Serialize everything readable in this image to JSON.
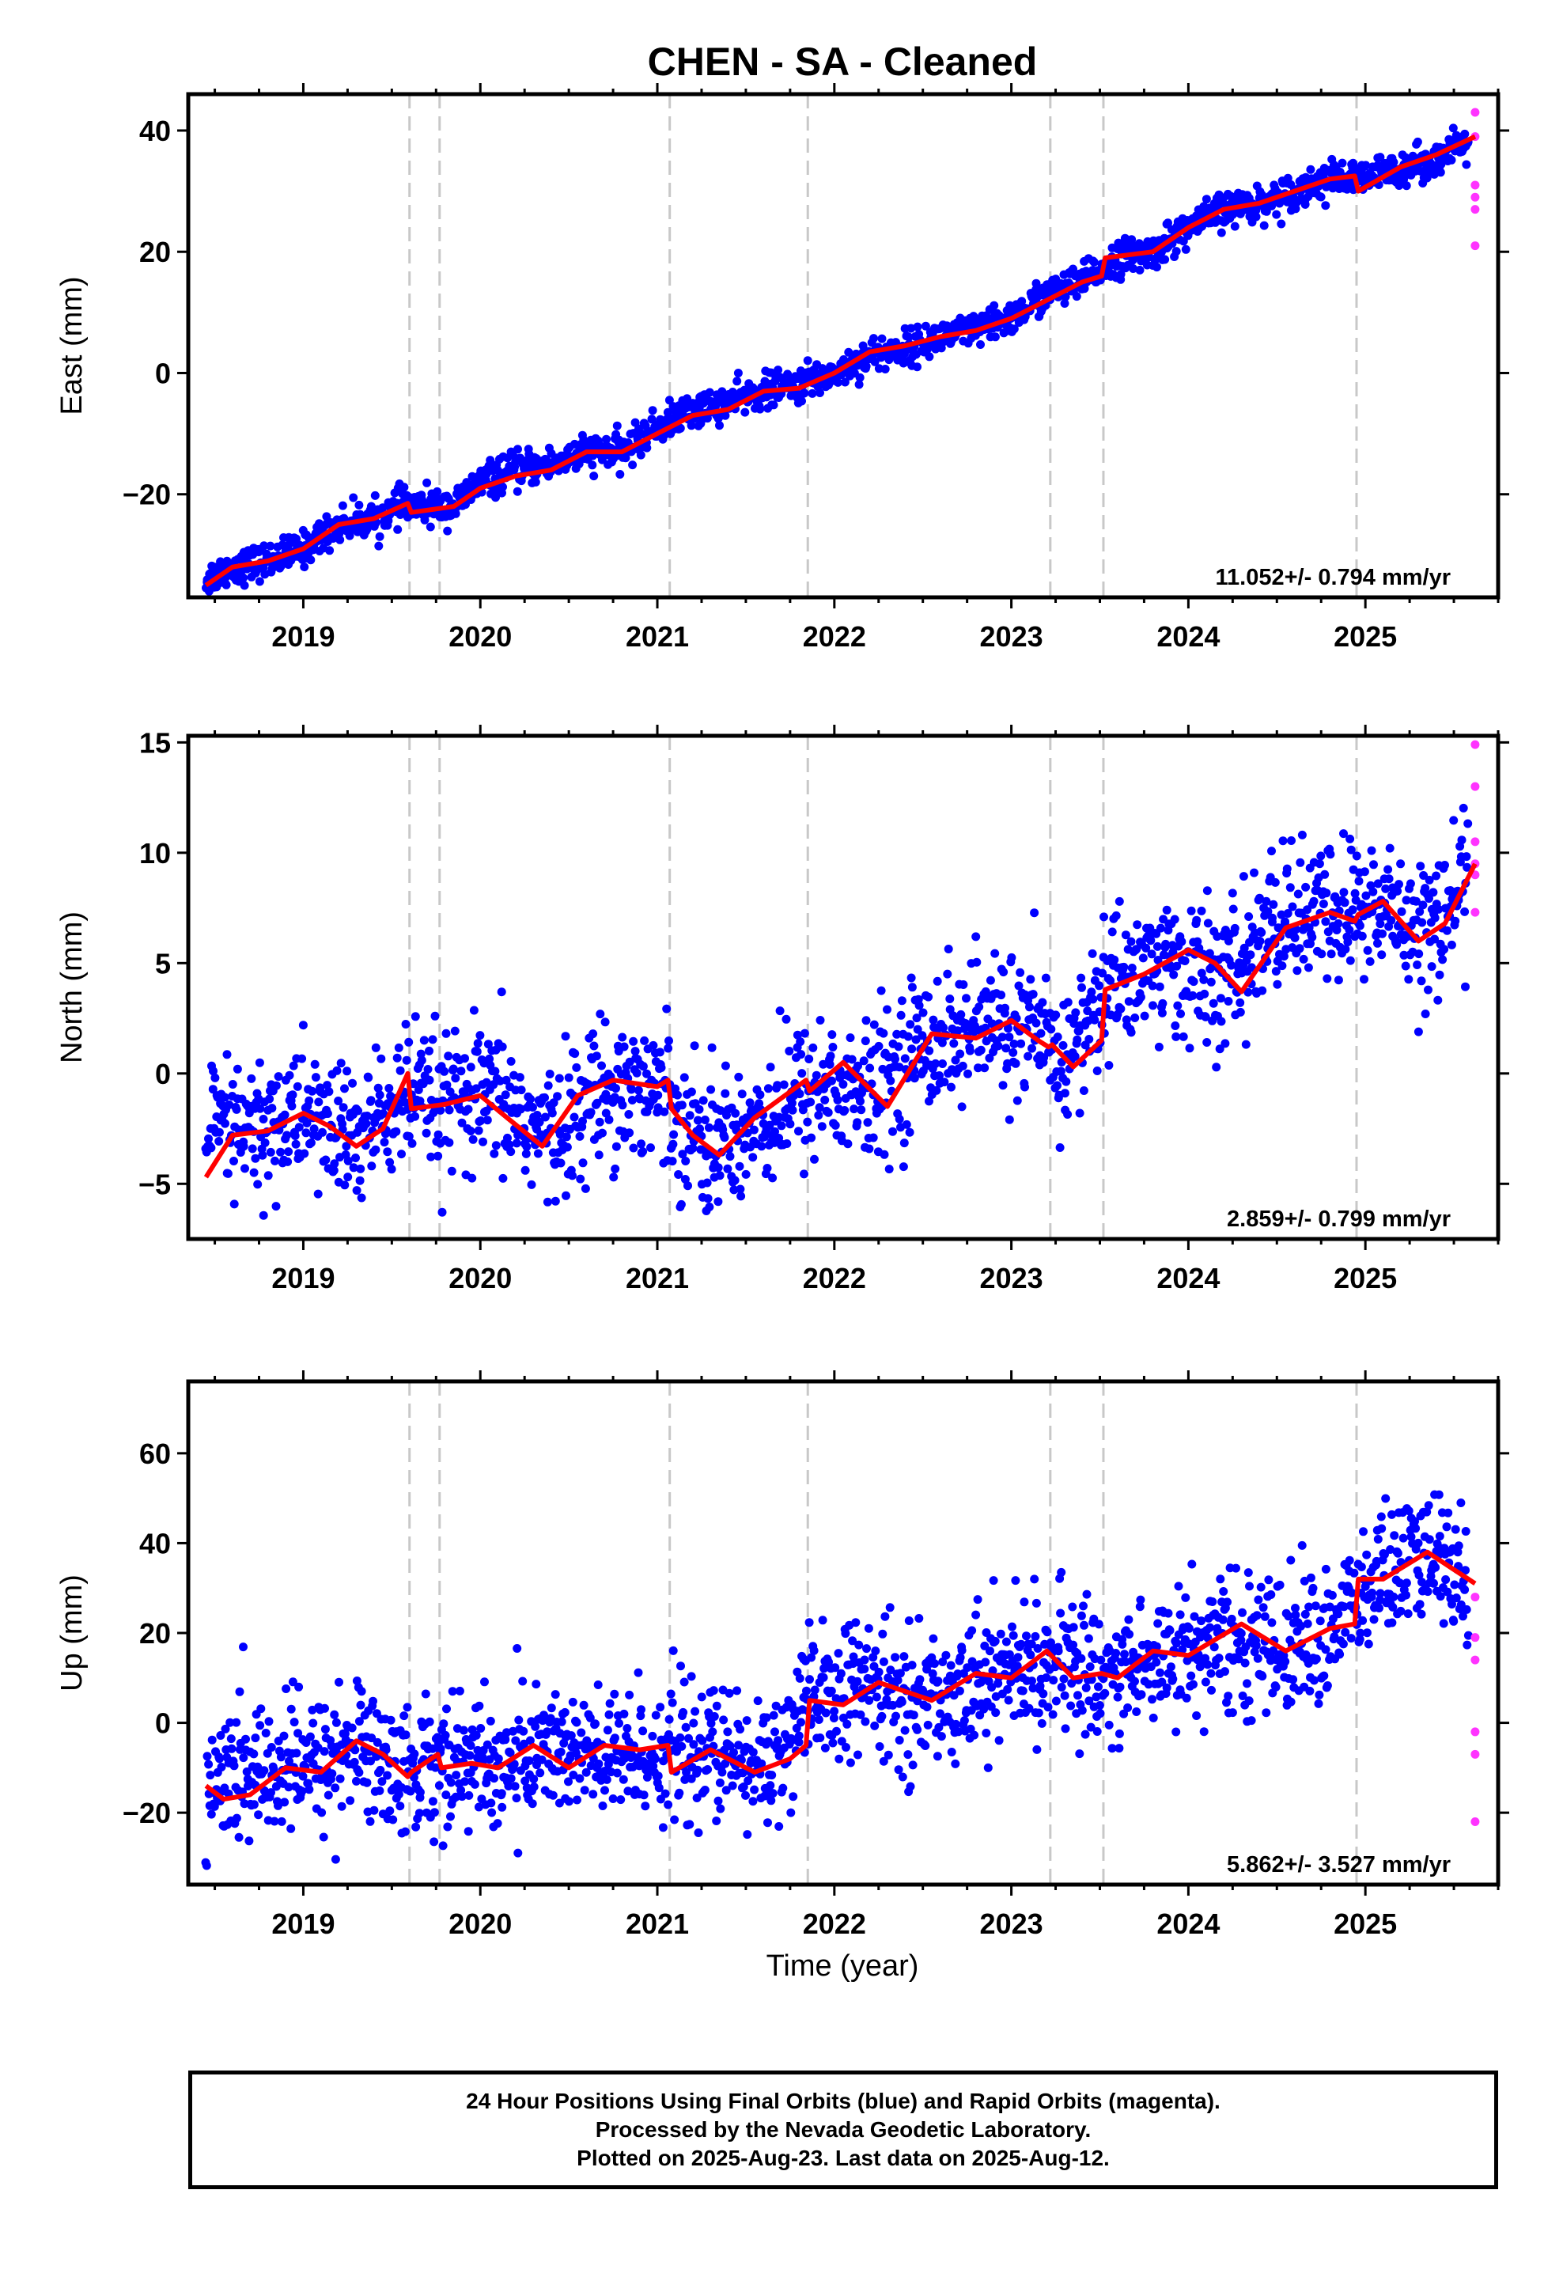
{
  "title": "CHEN  - SA - Cleaned",
  "xlabel": "Time (year)",
  "footer": [
    "24 Hour Positions Using Final Orbits (blue) and Rapid Orbits (magenta).",
    "Processed by the Nevada Geodetic Laboratory.",
    "Plotted on 2025-Aug-23. Last data on 2025-Aug-12."
  ],
  "colors": {
    "final_orbits": "#0000ff",
    "rapid_orbits": "#ff33ff",
    "model_fit": "#ff0000",
    "event_lines": "#c8c8c8"
  },
  "chart_data": [
    {
      "type": "scatter",
      "ylabel": "East (mm)",
      "rate_text": "11.052+/- 0.794 mm/yr",
      "xlim": [
        2018.35,
        2025.75
      ],
      "ylim": [
        -37,
        46
      ],
      "xticks": [
        2019,
        2020,
        2021,
        2022,
        2023,
        2024,
        2025
      ],
      "yticks": [
        -20,
        0,
        20,
        40
      ],
      "event_lines": [
        2019.6,
        2019.77,
        2021.07,
        2021.85,
        2023.22,
        2023.52,
        2024.95
      ],
      "series": [
        {
          "name": "Final Orbits (blue)",
          "x": [
            2018.45,
            2018.6,
            2018.8,
            2019.0,
            2019.2,
            2019.4,
            2019.55,
            2019.7,
            2019.85,
            2020.0,
            2020.2,
            2020.4,
            2020.6,
            2020.8,
            2021.0,
            2021.2,
            2021.4,
            2021.6,
            2021.8,
            2022.0,
            2022.2,
            2022.4,
            2022.6,
            2022.8,
            2023.0,
            2023.2,
            2023.4,
            2023.6,
            2023.8,
            2024.0,
            2024.2,
            2024.4,
            2024.6,
            2024.8,
            2025.0,
            2025.2,
            2025.4,
            2025.58
          ],
          "y": [
            -34,
            -32,
            -31,
            -29,
            -25,
            -24,
            -22,
            -22,
            -22,
            -18,
            -16,
            -15,
            -13,
            -13,
            -9,
            -6,
            -5,
            -3,
            -2,
            0,
            3,
            4,
            6,
            7,
            9,
            13,
            15,
            19,
            20,
            24,
            27,
            28,
            30,
            32,
            32,
            34,
            35,
            38
          ]
        },
        {
          "name": "Rapid Orbits (magenta)",
          "x": [
            2025.62,
            2025.62,
            2025.62,
            2025.62,
            2025.62,
            2025.62
          ],
          "y": [
            43,
            39,
            31,
            29,
            27,
            21
          ]
        },
        {
          "name": "Model fit",
          "x": [
            2018.45,
            2018.6,
            2018.8,
            2019.0,
            2019.2,
            2019.4,
            2019.59,
            2019.61,
            2019.85,
            2020.0,
            2020.2,
            2020.4,
            2020.6,
            2020.8,
            2021.0,
            2021.2,
            2021.4,
            2021.6,
            2021.8,
            2022.0,
            2022.2,
            2022.4,
            2022.6,
            2022.8,
            2023.0,
            2023.2,
            2023.4,
            2023.51,
            2023.53,
            2023.8,
            2024.0,
            2024.2,
            2024.4,
            2024.6,
            2024.8,
            2024.94,
            2024.96,
            2025.2,
            2025.4,
            2025.62
          ],
          "y": [
            -35,
            -32,
            -31,
            -29,
            -25,
            -24,
            -21.5,
            -23,
            -22,
            -19,
            -17,
            -16,
            -13,
            -13,
            -10,
            -7,
            -6,
            -3,
            -2.5,
            0,
            3.5,
            4.5,
            6,
            7,
            9,
            12,
            15,
            16,
            19,
            20,
            24,
            27,
            28,
            30,
            32,
            32.5,
            30,
            34,
            36,
            39
          ]
        }
      ]
    },
    {
      "type": "scatter",
      "ylabel": "North (mm)",
      "rate_text": "2.859+/- 0.799 mm/yr",
      "xlim": [
        2018.35,
        2025.75
      ],
      "ylim": [
        -7.5,
        15.3
      ],
      "xticks": [
        2019,
        2020,
        2021,
        2022,
        2023,
        2024,
        2025
      ],
      "yticks": [
        -5,
        0,
        5,
        10,
        15
      ],
      "event_lines": [
        2019.6,
        2019.77,
        2021.07,
        2021.85,
        2023.22,
        2023.52,
        2024.95
      ],
      "series": [
        {
          "name": "Final Orbits (blue)",
          "x": [
            2018.45,
            2018.7,
            2019.0,
            2019.3,
            2019.55,
            2019.8,
            2020.1,
            2020.4,
            2020.7,
            2021.0,
            2021.3,
            2021.6,
            2021.9,
            2022.2,
            2022.5,
            2022.8,
            2023.0,
            2023.3,
            2023.6,
            2023.9,
            2024.2,
            2024.5,
            2024.8,
            2025.1,
            2025.4,
            2025.58
          ],
          "y": [
            -2.5,
            -2.8,
            -1.8,
            -3.0,
            -1.2,
            -1.5,
            -1.2,
            -3.0,
            -0.5,
            -0.6,
            -3.4,
            -2.0,
            -0.5,
            -1.0,
            1.5,
            2.0,
            2.4,
            0.5,
            4.5,
            5.0,
            4.0,
            7.0,
            7.2,
            7.5,
            6.5,
            9.0
          ]
        },
        {
          "name": "Rapid Orbits (magenta)",
          "x": [
            2025.62,
            2025.62,
            2025.62,
            2025.62,
            2025.62,
            2025.62
          ],
          "y": [
            14.9,
            13.0,
            10.5,
            9.5,
            9.0,
            7.3
          ]
        },
        {
          "name": "Model fit",
          "x": [
            2018.45,
            2018.6,
            2018.8,
            2019.0,
            2019.15,
            2019.3,
            2019.45,
            2019.59,
            2019.61,
            2019.8,
            2020.0,
            2020.15,
            2020.35,
            2020.55,
            2020.75,
            2021.0,
            2021.06,
            2021.08,
            2021.2,
            2021.35,
            2021.55,
            2021.84,
            2021.86,
            2022.05,
            2022.3,
            2022.55,
            2022.8,
            2023.0,
            2023.15,
            2023.21,
            2023.23,
            2023.35,
            2023.51,
            2023.53,
            2023.75,
            2024.0,
            2024.15,
            2024.3,
            2024.55,
            2024.8,
            2024.94,
            2024.96,
            2025.1,
            2025.3,
            2025.45,
            2025.62
          ],
          "y": [
            -4.7,
            -2.8,
            -2.6,
            -1.8,
            -2.4,
            -3.3,
            -2.5,
            0.0,
            -1.6,
            -1.4,
            -1.0,
            -2.0,
            -3.3,
            -1.0,
            -0.3,
            -0.6,
            -0.3,
            -1.6,
            -2.8,
            -3.7,
            -2.0,
            -0.3,
            -0.8,
            0.5,
            -1.5,
            1.8,
            1.6,
            2.4,
            1.5,
            1.2,
            1.3,
            0.3,
            1.5,
            3.8,
            4.5,
            5.6,
            5.0,
            3.7,
            6.6,
            7.3,
            6.9,
            7.2,
            7.8,
            6.0,
            6.8,
            9.5
          ]
        }
      ]
    },
    {
      "type": "scatter",
      "ylabel": "Up (mm)",
      "rate_text": "5.862+/- 3.527 mm/yr",
      "xlim": [
        2018.35,
        2025.75
      ],
      "ylim": [
        -36,
        76
      ],
      "xticks": [
        2019,
        2020,
        2021,
        2022,
        2023,
        2024,
        2025
      ],
      "yticks": [
        -20,
        0,
        20,
        40,
        60
      ],
      "event_lines": [
        2019.6,
        2019.77,
        2021.07,
        2021.85,
        2023.22,
        2023.52,
        2024.95
      ],
      "series": [
        {
          "name": "Final Orbits (blue)",
          "x": [
            2018.45,
            2018.7,
            2019.0,
            2019.3,
            2019.55,
            2019.8,
            2020.1,
            2020.4,
            2020.7,
            2021.0,
            2021.3,
            2021.6,
            2021.9,
            2022.2,
            2022.5,
            2022.8,
            2023.0,
            2023.3,
            2023.6,
            2023.9,
            2024.2,
            2024.5,
            2024.8,
            2025.1,
            2025.4,
            2025.58
          ],
          "y": [
            -14,
            -11,
            -10,
            -5,
            -11,
            -8,
            -10,
            -5,
            -9,
            -6,
            -7,
            -10,
            5,
            8,
            4,
            10,
            12,
            13,
            10,
            16,
            18,
            17,
            20,
            33,
            37,
            32
          ]
        },
        {
          "name": "Rapid Orbits (magenta)",
          "x": [
            2025.62,
            2025.62,
            2025.62,
            2025.62,
            2025.62,
            2025.62
          ],
          "y": [
            28,
            19,
            14,
            -2,
            -7,
            -22
          ]
        },
        {
          "name": "Model fit",
          "x": [
            2018.45,
            2018.55,
            2018.7,
            2018.9,
            2019.1,
            2019.3,
            2019.45,
            2019.59,
            2019.61,
            2019.76,
            2019.78,
            2019.95,
            2020.1,
            2020.3,
            2020.5,
            2020.7,
            2020.9,
            2021.06,
            2021.08,
            2021.3,
            2021.55,
            2021.75,
            2021.84,
            2021.86,
            2022.05,
            2022.25,
            2022.55,
            2022.8,
            2023.0,
            2023.2,
            2023.35,
            2023.51,
            2023.6,
            2023.8,
            2024.0,
            2024.3,
            2024.55,
            2024.8,
            2024.94,
            2024.96,
            2025.1,
            2025.35,
            2025.62
          ],
          "y": [
            -14,
            -17,
            -16,
            -10,
            -11,
            -4,
            -7,
            -12,
            -11,
            -7,
            -10,
            -9,
            -10,
            -5,
            -10,
            -5,
            -6,
            -5,
            -11,
            -6,
            -11,
            -8,
            -5,
            5,
            4,
            9,
            5,
            11,
            10,
            16,
            10,
            11,
            10,
            16,
            15,
            22,
            16,
            21,
            22,
            32,
            32,
            38,
            31
          ]
        }
      ]
    }
  ]
}
